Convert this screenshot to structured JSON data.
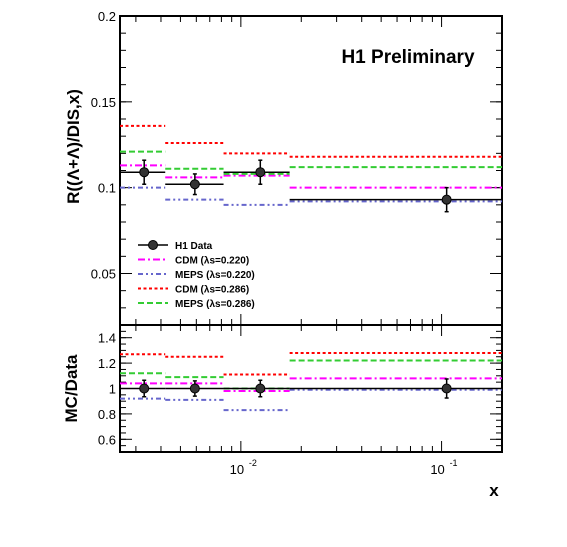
{
  "watermark": "H1 Preliminary",
  "colors": {
    "data": "#000000",
    "cdm_220": "#ff00ff",
    "meps_220": "#6666cc",
    "cdm_286": "#ff0000",
    "meps_286": "#33cc33"
  },
  "chart_data": [
    {
      "type": "line",
      "ylabel": "R((Λ+Λ)/DIS,x)",
      "ylim": [
        0.02,
        0.2
      ],
      "xlim": [
        0.0025,
        0.2
      ],
      "x_scale": "log",
      "y_ticks": [
        0.05,
        0.1,
        0.15,
        0.2
      ],
      "y_tick_labels": [
        "0.05",
        "0.1",
        "0.15",
        "0.2"
      ],
      "bin_edges": [
        0.0025,
        0.0042,
        0.0082,
        0.0175,
        0.2
      ],
      "legend_position": "lower-left",
      "series": [
        {
          "name": "H1 Data",
          "style": "markers",
          "x": [
            0.0033,
            0.0059,
            0.0125,
            0.106
          ],
          "values": [
            0.109,
            0.102,
            0.109,
            0.093
          ],
          "errors": [
            0.007,
            0.006,
            0.007,
            0.007
          ]
        },
        {
          "name": "CDM (λs=0.220)",
          "style": "dashdot",
          "color_key": "cdm_220",
          "values": [
            0.113,
            0.106,
            0.107,
            0.1
          ]
        },
        {
          "name": "MEPS (λs=0.220)",
          "style": "dashdotdot",
          "color_key": "meps_220",
          "values": [
            0.1,
            0.093,
            0.09,
            0.092
          ]
        },
        {
          "name": "CDM (λs=0.286)",
          "style": "dotted",
          "color_key": "cdm_286",
          "values": [
            0.136,
            0.126,
            0.12,
            0.118
          ]
        },
        {
          "name": "MEPS (λs=0.286)",
          "style": "dashed",
          "color_key": "meps_286",
          "values": [
            0.121,
            0.111,
            0.108,
            0.112
          ]
        }
      ]
    },
    {
      "type": "line",
      "xlabel": "x",
      "ylabel": "MC/Data",
      "ylim": [
        0.5,
        1.5
      ],
      "xlim": [
        0.0025,
        0.2
      ],
      "x_scale": "log",
      "y_ticks": [
        0.6,
        0.8,
        1.0,
        1.2,
        1.4
      ],
      "y_tick_labels": [
        "0.6",
        "0.8",
        "1",
        "1.2",
        "1.4"
      ],
      "x_ticks": [
        0.01,
        0.1
      ],
      "x_tick_labels": [
        [
          "10",
          "-2"
        ],
        [
          "10",
          "-1"
        ]
      ],
      "bin_edges": [
        0.0025,
        0.0042,
        0.0082,
        0.0175,
        0.2
      ],
      "series": [
        {
          "name": "H1 Data",
          "style": "markers",
          "x": [
            0.0033,
            0.0059,
            0.0125,
            0.106
          ],
          "values": [
            1.0,
            1.0,
            1.0,
            1.0
          ],
          "errors": [
            0.065,
            0.06,
            0.065,
            0.075
          ]
        },
        {
          "name": "CDM (λs=0.220)",
          "style": "dashdot",
          "color_key": "cdm_220",
          "values": [
            1.04,
            1.04,
            0.98,
            1.08
          ]
        },
        {
          "name": "MEPS (λs=0.220)",
          "style": "dashdotdot",
          "color_key": "meps_220",
          "values": [
            0.92,
            0.91,
            0.83,
            0.99
          ]
        },
        {
          "name": "CDM (λs=0.286)",
          "style": "dotted",
          "color_key": "cdm_286",
          "values": [
            1.27,
            1.25,
            1.11,
            1.28
          ]
        },
        {
          "name": "MEPS (λs=0.286)",
          "style": "dashed",
          "color_key": "meps_286",
          "values": [
            1.12,
            1.09,
            1.0,
            1.22
          ]
        }
      ]
    }
  ]
}
